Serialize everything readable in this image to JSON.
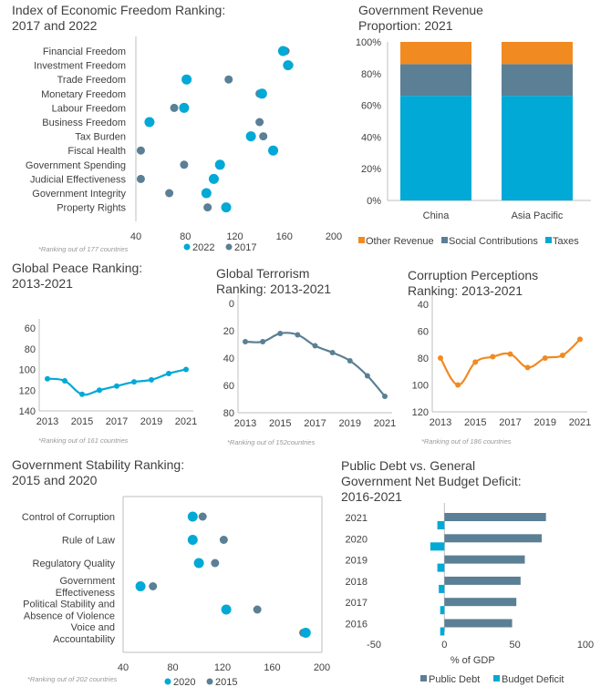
{
  "colors": {
    "cyan": "#00a9d6",
    "slate": "#5b7f95",
    "orange": "#f18a21",
    "axis": "#bfbfbf",
    "text": "#404040"
  },
  "chart_data": [
    {
      "id": "econ",
      "type": "scatter",
      "title": [
        "Index of Economic Freedom Ranking:",
        "2017 and 2022"
      ],
      "categories": [
        "Financial Freedom",
        "Investment Freedom",
        "Trade Freedom",
        "Monetary Freedom",
        "Labour Freedom",
        "Business Freedom",
        "Tax Burden",
        "Fiscal Health",
        "Government Spending",
        "Judicial Effectiveness",
        "Government Integrity",
        "Property Rights"
      ],
      "series": [
        {
          "name": "2022",
          "color": "cyan",
          "values": [
            159,
            163,
            81,
            142,
            79,
            51,
            133,
            151,
            108,
            103,
            97,
            113
          ]
        },
        {
          "name": "2017",
          "color": "slate",
          "values": [
            161,
            164,
            115,
            140,
            71,
            140,
            143,
            44,
            79,
            44,
            67,
            98
          ]
        }
      ],
      "xlim": [
        40,
        200
      ],
      "xticks": [
        "40",
        "80",
        "120",
        "160",
        "200"
      ],
      "note": "*Ranking out of 177 countries"
    },
    {
      "id": "revenue",
      "type": "bar",
      "stacked": true,
      "title": [
        "Government Revenue",
        "Proportion: 2021"
      ],
      "categories": [
        "China",
        "Asia Pacific"
      ],
      "series": [
        {
          "name": "Taxes",
          "color": "cyan",
          "values": [
            66,
            66
          ]
        },
        {
          "name": "Social Contributions",
          "color": "slate",
          "values": [
            20,
            20
          ]
        },
        {
          "name": "Other Revenue",
          "color": "orange",
          "values": [
            14,
            14
          ]
        }
      ],
      "ylim": [
        0,
        100
      ],
      "yticks": [
        "0%",
        "20%",
        "40%",
        "60%",
        "80%",
        "100%"
      ],
      "legend": [
        "Other Revenue",
        "Social Contributions",
        "Taxes"
      ]
    },
    {
      "id": "peace",
      "type": "line",
      "title": [
        "Global Peace Ranking:",
        "2013-2021"
      ],
      "color": "cyan",
      "x": [
        2013,
        2014,
        2015,
        2016,
        2017,
        2018,
        2019,
        2020,
        2021
      ],
      "values": [
        109,
        111,
        124,
        120,
        116,
        112,
        110,
        104,
        100
      ],
      "ylim": [
        60,
        140
      ],
      "inverted": true,
      "yticks": [
        "60",
        "80",
        "100",
        "120",
        "140"
      ],
      "xticks": [
        "2013",
        "2015",
        "2017",
        "2019",
        "2021"
      ],
      "note": "*Ranking out of 161 countries"
    },
    {
      "id": "terror",
      "type": "line",
      "title": [
        "Global Terrorism",
        "Ranking: 2013-2021"
      ],
      "color": "slate",
      "x": [
        2013,
        2014,
        2015,
        2016,
        2017,
        2018,
        2019,
        2020,
        2021
      ],
      "values": [
        28,
        28,
        22,
        23,
        31,
        36,
        42,
        53,
        68
      ],
      "ylim": [
        0,
        80
      ],
      "inverted": true,
      "yticks": [
        "0",
        "20",
        "40",
        "60",
        "80"
      ],
      "xticks": [
        "2013",
        "2015",
        "2017",
        "2019",
        "2021"
      ],
      "note": "*Ranking out of 152countries"
    },
    {
      "id": "corruption",
      "type": "line",
      "title": [
        "Corruption Perceptions",
        "Ranking: 2013-2021"
      ],
      "color": "orange",
      "x": [
        2013,
        2014,
        2015,
        2016,
        2017,
        2018,
        2019,
        2020,
        2021
      ],
      "values": [
        80,
        100,
        83,
        79,
        77,
        87,
        80,
        78,
        66
      ],
      "ylim": [
        40,
        120
      ],
      "inverted": true,
      "yticks": [
        "40",
        "60",
        "80",
        "100",
        "120"
      ],
      "xticks": [
        "2013",
        "2015",
        "2017",
        "2019",
        "2021"
      ],
      "note": "*Ranking out of 186 countries"
    },
    {
      "id": "stability",
      "type": "scatter",
      "title": [
        "Government Stability Ranking:",
        "2015 and 2020"
      ],
      "categories": [
        [
          "Control of Corruption"
        ],
        [
          "Rule of Law"
        ],
        [
          "Regulatory Quality"
        ],
        [
          "Government",
          "Effectiveness"
        ],
        [
          "Political Stability and",
          "Absence of Violence"
        ],
        [
          "Voice and",
          "Accountability"
        ]
      ],
      "series": [
        {
          "name": "2020",
          "color": "cyan",
          "values": [
            96,
            96,
            101,
            54,
            123,
            187
          ]
        },
        {
          "name": "2015",
          "color": "slate",
          "values": [
            104,
            121,
            114,
            64,
            148,
            185
          ]
        }
      ],
      "xlim": [
        40,
        200
      ],
      "xticks": [
        "40",
        "80",
        "120",
        "160",
        "200"
      ],
      "note": "*Ranking out of 202 countries"
    },
    {
      "id": "debt",
      "type": "bar",
      "horizontal": true,
      "title": [
        "Public Debt vs. General",
        "Government Net Budget Deficit:",
        "2016-2021"
      ],
      "categories": [
        "2021",
        "2020",
        "2019",
        "2018",
        "2017",
        "2016"
      ],
      "series": [
        {
          "name": "Public Debt",
          "color": "slate",
          "values": [
            72,
            69,
            57,
            54,
            51,
            48
          ]
        },
        {
          "name": "Budget Deficit",
          "color": "cyan",
          "values": [
            -5,
            -10,
            -5,
            -4,
            -3,
            -3
          ]
        }
      ],
      "xlim": [
        -50,
        100
      ],
      "xticks": [
        "-50",
        "0",
        "50",
        "100"
      ],
      "xlabel": "% of GDP"
    }
  ]
}
